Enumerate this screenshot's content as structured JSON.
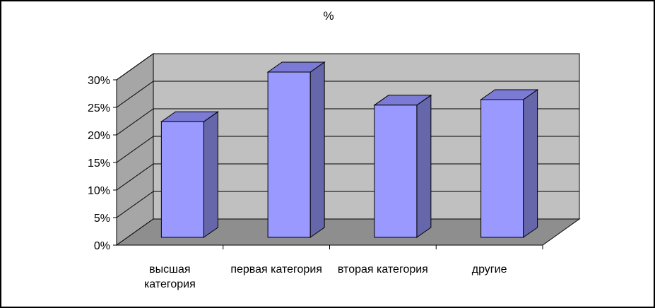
{
  "chart_data": {
    "type": "bar",
    "title": "%",
    "xlabel": "",
    "ylabel": "",
    "categories": [
      [
        "высшая",
        "категория"
      ],
      [
        "первая категория"
      ],
      [
        "вторая категория"
      ],
      [
        "другие"
      ]
    ],
    "values": [
      21,
      30,
      24,
      25
    ],
    "value_unit": "%",
    "ylim": [
      0,
      30
    ],
    "y_ticks": [
      "0%",
      "5%",
      "10%",
      "15%",
      "20%",
      "25%",
      "30%"
    ],
    "grid": true,
    "legend": "none",
    "three_d": true,
    "colors": {
      "bar_front": "#9999FF",
      "bar_side": "#6666AA",
      "bar_top": "#7B7BD6",
      "back_wall": "#C0C0C0",
      "side_wall": "#A6A6A6",
      "floor": "#8E8E8E",
      "gridline": "#000000",
      "frame": "#000000"
    }
  }
}
